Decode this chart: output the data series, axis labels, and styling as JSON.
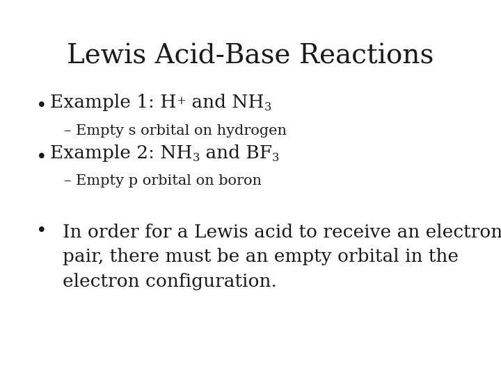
{
  "title": "Lewis Acid-Base Reactions",
  "background_color": "#ffffff",
  "text_color": "#1a1a1a",
  "title_fontsize": 28,
  "body_fontsize": 19,
  "sub_fontsize": 15,
  "bullet1_sub": "– Empty s orbital on hydrogen",
  "bullet2_sub": "– Empty p orbital on boron",
  "bullet3_line1": "In order for a Lewis acid to receive an electron",
  "bullet3_line2": "pair, there must be an empty orbital in the",
  "bullet3_line3": "electron configuration.",
  "font_family": "DejaVu Serif"
}
